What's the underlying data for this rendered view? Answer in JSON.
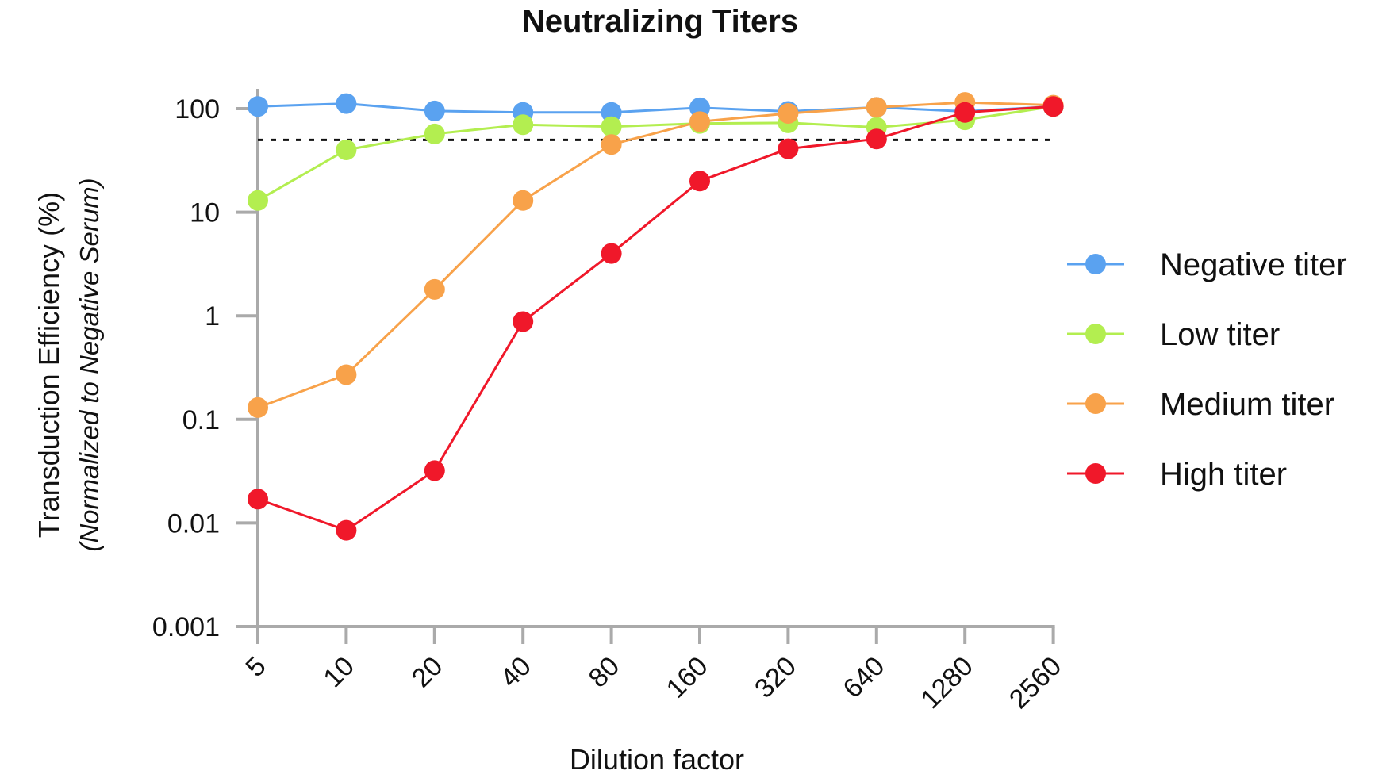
{
  "chart_data": {
    "type": "line",
    "title": "Neutralizing Titers",
    "xlabel": "Dilution factor",
    "ylabel": "Transduction Efficiency (%)",
    "ylabel_sub": "(Normalized to Negative Serum)",
    "yscale": "log",
    "ylim": [
      0.001,
      100
    ],
    "yticks": [
      "100",
      "10",
      "1",
      "0.1",
      "0.01",
      "0.001"
    ],
    "ytick_values": [
      100,
      10,
      1,
      0.1,
      0.01,
      0.001
    ],
    "categories": [
      "5",
      "10",
      "20",
      "40",
      "80",
      "160",
      "320",
      "640",
      "1280",
      "2560"
    ],
    "reference_line": {
      "y": 50,
      "style": "dotted",
      "color": "#111111"
    },
    "grid": false,
    "legend": "right",
    "series": [
      {
        "name": "Negative titer",
        "color": "#5aa2f0",
        "values": [
          105,
          112,
          95,
          92,
          92,
          102,
          94,
          103,
          94,
          105
        ]
      },
      {
        "name": "Low titer",
        "color": "#b3ee50",
        "values": [
          13,
          40,
          57,
          70,
          67,
          72,
          73,
          66,
          78,
          105
        ]
      },
      {
        "name": "Medium titer",
        "color": "#f8a24a",
        "values": [
          0.13,
          0.27,
          1.8,
          13,
          45,
          75,
          90,
          103,
          115,
          108
        ]
      },
      {
        "name": "High titer",
        "color": "#f0182a",
        "values": [
          0.017,
          0.0085,
          0.032,
          0.88,
          4.0,
          20,
          41,
          51,
          92,
          105
        ]
      }
    ]
  }
}
